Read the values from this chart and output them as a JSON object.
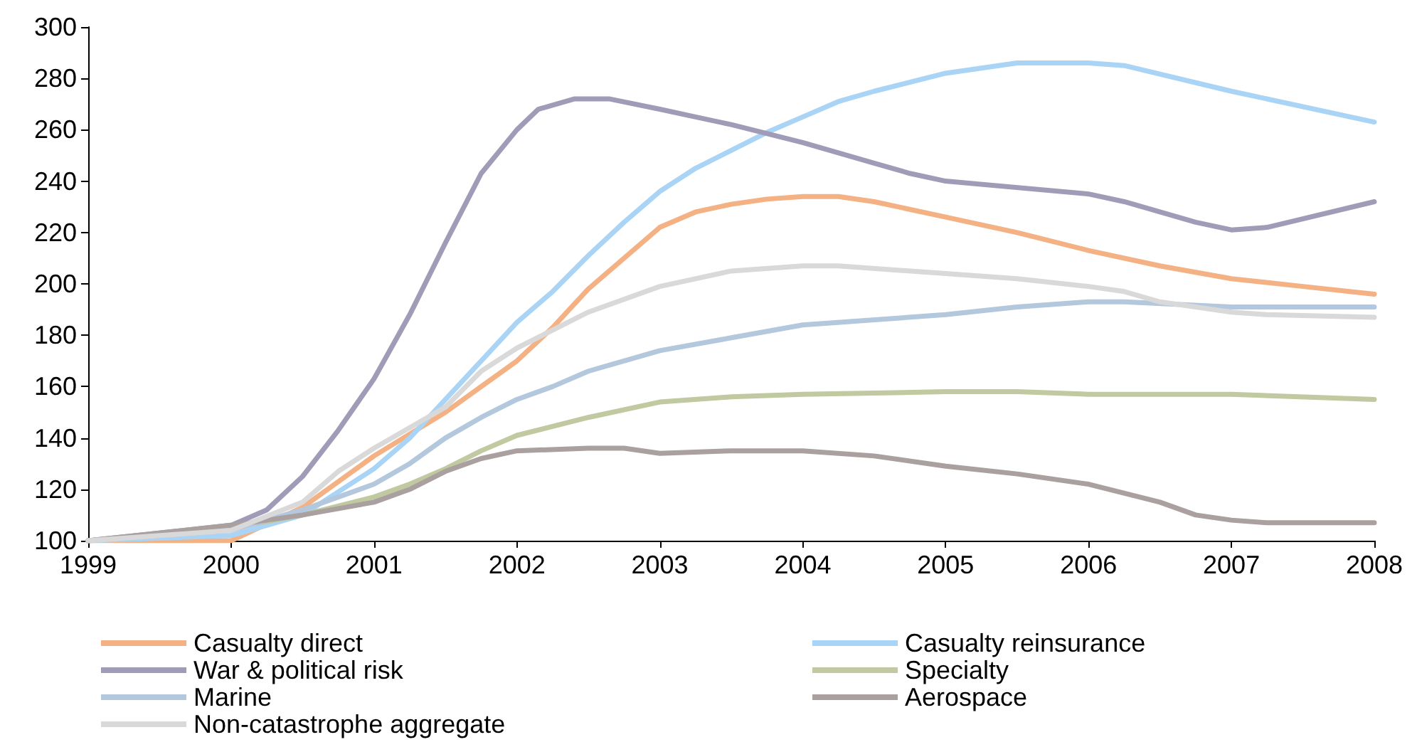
{
  "chart_data": {
    "type": "line",
    "xlim": [
      1999,
      2008
    ],
    "xticks": [
      1999,
      2000,
      2001,
      2002,
      2003,
      2004,
      2005,
      2006,
      2007,
      2008
    ],
    "ylim": [
      100,
      300
    ],
    "yticks": [
      100,
      120,
      140,
      160,
      180,
      200,
      220,
      240,
      260,
      280,
      300
    ],
    "grid": false,
    "legend": "bottom",
    "marker": "none",
    "line_style": "solid",
    "series": [
      {
        "name": "Casualty direct",
        "color": "#f4b183",
        "x": [
          1999,
          2000,
          2000.5,
          2001,
          2001.5,
          2001.75,
          2002,
          2002.25,
          2002.5,
          2002.75,
          2003,
          2003.25,
          2003.5,
          2003.75,
          2004,
          2004.25,
          2004.5,
          2005,
          2005.5,
          2006,
          2006.5,
          2007,
          2007.5,
          2008
        ],
        "values": [
          100,
          100,
          113,
          133,
          150,
          160,
          170,
          183,
          198,
          210,
          222,
          228,
          231,
          233,
          234,
          234,
          232,
          226,
          220,
          213,
          207,
          202,
          199,
          196
        ]
      },
      {
        "name": "Casualty reinsurance",
        "color": "#a9d4f5",
        "x": [
          1999,
          2000,
          2000.5,
          2001,
          2001.25,
          2001.5,
          2001.75,
          2002,
          2002.25,
          2002.5,
          2002.75,
          2003,
          2003.25,
          2003.5,
          2003.75,
          2004,
          2004.25,
          2004.5,
          2005,
          2005.5,
          2006,
          2006.25,
          2007,
          2008
        ],
        "values": [
          100,
          102,
          110,
          128,
          140,
          155,
          170,
          185,
          197,
          211,
          224,
          236,
          245,
          252,
          259,
          265,
          271,
          275,
          282,
          286,
          286,
          285,
          275,
          263
        ]
      },
      {
        "name": "War & political risk",
        "color": "#a09cb8",
        "x": [
          1999,
          2000,
          2000.25,
          2000.5,
          2000.75,
          2001,
          2001.25,
          2001.5,
          2001.75,
          2002,
          2002.15,
          2002.4,
          2002.65,
          2003,
          2003.25,
          2003.5,
          2004,
          2004.25,
          2004.5,
          2004.75,
          2005,
          2006,
          2006.25,
          2006.75,
          2007,
          2007.25,
          2008
        ],
        "values": [
          100,
          106,
          112,
          125,
          143,
          163,
          188,
          216,
          243,
          260,
          268,
          272,
          272,
          268,
          265,
          262,
          255,
          251,
          247,
          243,
          240,
          235,
          232,
          224,
          221,
          222,
          232
        ]
      },
      {
        "name": "Specialty",
        "color": "#c0c9a0",
        "x": [
          1999,
          2000,
          2000.5,
          2001,
          2001.25,
          2001.5,
          2001.75,
          2002,
          2002.5,
          2003,
          2003.5,
          2004,
          2005,
          2005.5,
          2006,
          2007,
          2008
        ],
        "values": [
          100,
          105,
          110,
          117,
          122,
          128,
          135,
          141,
          148,
          154,
          156,
          157,
          158,
          158,
          157,
          157,
          155
        ]
      },
      {
        "name": "Marine",
        "color": "#b3c7dd",
        "x": [
          1999,
          2000,
          2000.5,
          2001,
          2001.25,
          2001.5,
          2001.75,
          2002,
          2002.25,
          2002.5,
          2003,
          2003.5,
          2004,
          2005,
          2005.5,
          2006,
          2006.25,
          2007,
          2008
        ],
        "values": [
          100,
          104,
          112,
          122,
          130,
          140,
          148,
          155,
          160,
          166,
          174,
          179,
          184,
          188,
          191,
          193,
          193,
          191,
          191
        ]
      },
      {
        "name": "Aerospace",
        "color": "#aaa0a0",
        "x": [
          1999,
          2000,
          2000.5,
          2001,
          2001.25,
          2001.5,
          2001.75,
          2002,
          2002.5,
          2002.75,
          2003,
          2003.5,
          2004,
          2004.5,
          2005,
          2005.5,
          2006,
          2006.5,
          2006.75,
          2007,
          2007.25,
          2008
        ],
        "values": [
          100,
          106,
          110,
          115,
          120,
          127,
          132,
          135,
          136,
          136,
          134,
          135,
          135,
          133,
          129,
          126,
          122,
          115,
          110,
          108,
          107,
          107
        ]
      },
      {
        "name": "Non-catastrophe aggregate",
        "color": "#d9d9d9",
        "x": [
          1999,
          2000,
          2000.5,
          2000.75,
          2001,
          2001.5,
          2001.75,
          2002,
          2002.5,
          2003,
          2003.5,
          2004,
          2004.25,
          2005,
          2005.5,
          2006,
          2006.25,
          2006.5,
          2007,
          2007.25,
          2008
        ],
        "values": [
          100,
          104,
          115,
          127,
          136,
          152,
          166,
          175,
          189,
          199,
          205,
          207,
          207,
          204,
          202,
          199,
          197,
          193,
          189,
          188,
          187
        ]
      }
    ]
  }
}
